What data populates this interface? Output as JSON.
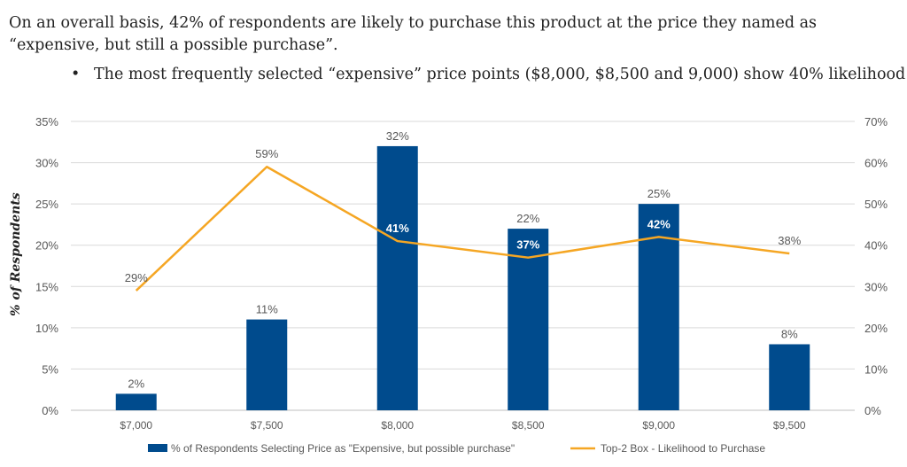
{
  "headline": "On an overall basis, 42% of respondents are likely to purchase this product at the price they named as “expensive, but still a possible purchase”.",
  "bullet": "The most frequently selected “expensive” price points ($8,000, $8,500 and 9,000) show 40% likelihood",
  "bullet_marker": "•",
  "colors": {
    "bar": "#004b8d",
    "line": "#f5a623",
    "axis_text": "#595959",
    "grid": "#d9d9d9"
  },
  "chart_data": {
    "type": "bar",
    "categories": [
      "$7,000",
      "$7,500",
      "$8,000",
      "$8,500",
      "$9,000",
      "$9,500"
    ],
    "ylabel": "% of Respondents",
    "ylim": [
      0,
      35
    ],
    "y2lim": [
      0,
      70
    ],
    "yticks": [
      "0%",
      "5%",
      "10%",
      "15%",
      "20%",
      "25%",
      "30%",
      "35%"
    ],
    "y2ticks": [
      "0%",
      "10%",
      "20%",
      "30%",
      "40%",
      "50%",
      "60%",
      "70%"
    ],
    "grid": true,
    "legend_position": "bottom",
    "series": [
      {
        "name": "% of Respondents Selecting Price as \"Expensive, but possible purchase\"",
        "type": "bar",
        "axis": "left",
        "values": [
          2,
          11,
          32,
          22,
          25,
          8
        ],
        "labels": [
          "2%",
          "11%",
          "32%",
          "22%",
          "25%",
          "8%"
        ]
      },
      {
        "name": "Top-2 Box - Likelihood to Purchase",
        "type": "line",
        "axis": "right",
        "values": [
          29,
          59,
          41,
          37,
          42,
          38
        ],
        "labels": [
          "29%",
          "59%",
          "41%",
          "37%",
          "42%",
          "38%"
        ]
      }
    ]
  }
}
